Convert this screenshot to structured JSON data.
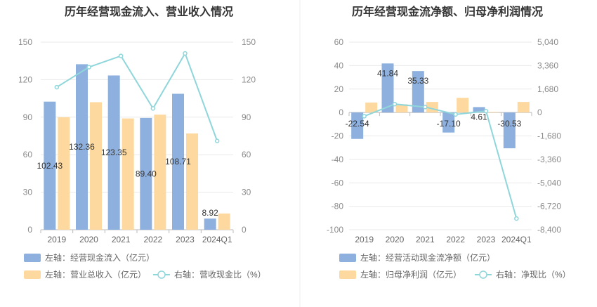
{
  "chart_data": [
    {
      "type": "bar",
      "title": "历年经营现金流入、营业收入情况",
      "categories": [
        "2019",
        "2020",
        "2021",
        "2022",
        "2023",
        "2024Q1"
      ],
      "left_axis": {
        "ylim": [
          0,
          150
        ],
        "ticks": [
          "150",
          "120",
          "90",
          "60",
          "30",
          "0"
        ]
      },
      "right_axis": {
        "ylim": [
          0,
          150
        ],
        "ticks": [
          "150",
          "120",
          "90",
          "60",
          "30",
          "0"
        ]
      },
      "series": [
        {
          "name": "左轴：经营现金流入（亿元）",
          "kind": "bar",
          "axis": "left",
          "color": "#8eb0de",
          "values": [
            102.43,
            132.36,
            123.35,
            89.4,
            108.71,
            8.92
          ],
          "labels": [
            "102.43",
            "132.36",
            "123.35",
            "89.40",
            "108.71",
            "8.92"
          ]
        },
        {
          "name": "左轴：营业总收入（亿元）",
          "kind": "bar",
          "axis": "left",
          "color": "#fdd9a0",
          "values": [
            90,
            102,
            89,
            92,
            77,
            13
          ]
        },
        {
          "name": "右轴：营收现金比（%）",
          "kind": "line",
          "axis": "right",
          "color": "#8fd6db",
          "values": [
            114,
            130,
            139,
            97,
            141,
            71
          ]
        }
      ],
      "legend_rows": [
        [
          "左轴：经营现金流入（亿元）"
        ],
        [
          "左轴：营业总收入（亿元）",
          "右轴：营收现金比（%）"
        ]
      ]
    },
    {
      "type": "bar",
      "title": "历年经营现金流净额、归母净利润情况",
      "categories": [
        "2019",
        "2020",
        "2021",
        "2022",
        "2023",
        "2024Q1"
      ],
      "left_axis": {
        "ylim": [
          -100,
          60
        ],
        "ticks": [
          "60",
          "40",
          "20",
          "0",
          "-20",
          "-40",
          "-60",
          "-80",
          "-100"
        ]
      },
      "right_axis": {
        "ylim": [
          -8400,
          5040
        ],
        "ticks": [
          "5,040",
          "3,360",
          "1,680",
          "0",
          "-1,680",
          "-3,360",
          "-5,040",
          "-6,720",
          "-8,400"
        ]
      },
      "series": [
        {
          "name": "左轴：经营活动现金流净额（亿元）",
          "kind": "bar",
          "axis": "left",
          "color": "#8eb0de",
          "values": [
            -22.54,
            41.84,
            35.33,
            -17.1,
            4.61,
            -30.53
          ],
          "labels": [
            "-22.54",
            "41.84",
            "35.33",
            "-17.10",
            "4.61",
            "-30.53"
          ]
        },
        {
          "name": "左轴：归母净利润（亿元）",
          "kind": "bar",
          "axis": "left",
          "color": "#fdd9a0",
          "values": [
            8.5,
            7,
            9,
            12.5,
            0.5,
            9
          ]
        },
        {
          "name": "右轴：净现比（%）",
          "kind": "line",
          "axis": "right",
          "color": "#8fd6db",
          "values": [
            -265,
            600,
            392,
            -137,
            100,
            -7600
          ]
        }
      ],
      "legend_rows": [
        [
          "左轴：经营活动现金流净额（亿元）"
        ],
        [
          "左轴：归母净利润（亿元）",
          "右轴：净现比（%）"
        ]
      ]
    }
  ]
}
